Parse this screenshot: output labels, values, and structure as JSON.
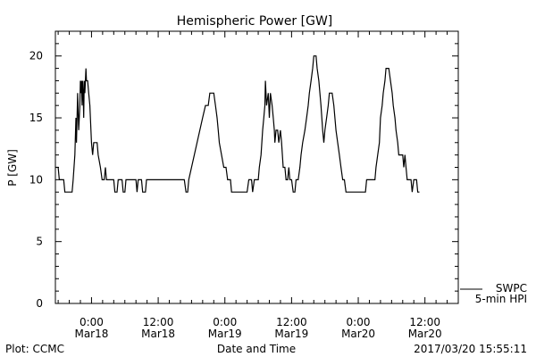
{
  "chart_data": {
    "type": "line",
    "title": "Hemispheric Power [GW]",
    "xlabel": "Date and Time",
    "ylabel": "P [GW]",
    "ylim": [
      0,
      22
    ],
    "yticks": [
      0,
      5,
      10,
      15,
      20
    ],
    "xlim": [
      -6.5,
      66
    ],
    "x_units": "hours since 2017-03-18 00:00",
    "xticks": [
      {
        "x": 0,
        "time": "0:00",
        "date": "Mar18"
      },
      {
        "x": 12,
        "time": "12:00",
        "date": "Mar18"
      },
      {
        "x": 24,
        "time": "0:00",
        "date": "Mar19"
      },
      {
        "x": 36,
        "time": "12:00",
        "date": "Mar19"
      },
      {
        "x": 48,
        "time": "0:00",
        "date": "Mar20"
      },
      {
        "x": 60,
        "time": "12:00",
        "date": "Mar20"
      }
    ],
    "grid": false,
    "legend": {
      "position": "bottom-right",
      "entries": [
        "SWPC",
        "5-min HPI"
      ]
    },
    "series": [
      {
        "name": "SWPC",
        "points": [
          [
            -6.5,
            11
          ],
          [
            -6.0,
            11
          ],
          [
            -5.8,
            10
          ],
          [
            -5.0,
            10
          ],
          [
            -4.8,
            9
          ],
          [
            -3.5,
            9
          ],
          [
            -3.3,
            10
          ],
          [
            -3.0,
            12
          ],
          [
            -2.8,
            15
          ],
          [
            -2.7,
            13
          ],
          [
            -2.5,
            17
          ],
          [
            -2.3,
            14
          ],
          [
            -2.1,
            16
          ],
          [
            -2.0,
            18
          ],
          [
            -1.9,
            17
          ],
          [
            -1.8,
            18
          ],
          [
            -1.7,
            16
          ],
          [
            -1.6,
            18
          ],
          [
            -1.5,
            17
          ],
          [
            -1.4,
            15
          ],
          [
            -1.3,
            18
          ],
          [
            -1.2,
            17
          ],
          [
            -1.0,
            19
          ],
          [
            -0.9,
            18
          ],
          [
            -0.7,
            18
          ],
          [
            -0.5,
            17
          ],
          [
            -0.3,
            16
          ],
          [
            -0.1,
            14
          ],
          [
            0.0,
            13
          ],
          [
            0.2,
            12
          ],
          [
            0.4,
            13
          ],
          [
            1.0,
            13
          ],
          [
            1.2,
            12
          ],
          [
            1.6,
            11
          ],
          [
            1.9,
            10
          ],
          [
            2.3,
            10
          ],
          [
            2.5,
            11
          ],
          [
            2.7,
            10
          ],
          [
            3.0,
            10
          ],
          [
            4.0,
            10
          ],
          [
            4.2,
            9
          ],
          [
            4.6,
            9
          ],
          [
            4.8,
            10
          ],
          [
            5.5,
            10
          ],
          [
            5.7,
            9
          ],
          [
            6.0,
            9
          ],
          [
            6.2,
            10
          ],
          [
            8.0,
            10
          ],
          [
            8.2,
            9
          ],
          [
            8.4,
            10
          ],
          [
            9.0,
            10
          ],
          [
            9.2,
            9
          ],
          [
            9.7,
            9
          ],
          [
            9.9,
            10
          ],
          [
            16.7,
            10
          ],
          [
            17.0,
            9
          ],
          [
            17.3,
            9
          ],
          [
            17.5,
            10
          ],
          [
            18.0,
            11
          ],
          [
            18.5,
            12
          ],
          [
            19.0,
            13
          ],
          [
            19.5,
            14
          ],
          [
            20.0,
            15
          ],
          [
            20.5,
            16
          ],
          [
            21.0,
            16
          ],
          [
            21.3,
            17
          ],
          [
            22.0,
            17
          ],
          [
            22.3,
            16
          ],
          [
            22.6,
            15
          ],
          [
            22.8,
            14
          ],
          [
            23.0,
            13
          ],
          [
            23.4,
            12
          ],
          [
            23.8,
            11
          ],
          [
            24.2,
            11
          ],
          [
            24.5,
            10
          ],
          [
            25.0,
            10
          ],
          [
            25.2,
            9
          ],
          [
            28.0,
            9
          ],
          [
            28.3,
            10
          ],
          [
            28.8,
            10
          ],
          [
            29.0,
            9
          ],
          [
            29.3,
            10
          ],
          [
            30.0,
            10
          ],
          [
            30.2,
            11
          ],
          [
            30.5,
            12
          ],
          [
            30.8,
            14
          ],
          [
            31.0,
            15
          ],
          [
            31.2,
            16
          ],
          [
            31.3,
            18
          ],
          [
            31.5,
            16
          ],
          [
            31.8,
            17
          ],
          [
            32.0,
            15
          ],
          [
            32.2,
            17
          ],
          [
            32.5,
            16
          ],
          [
            32.7,
            15
          ],
          [
            32.9,
            14
          ],
          [
            33.0,
            13
          ],
          [
            33.2,
            14
          ],
          [
            33.5,
            14
          ],
          [
            33.7,
            13
          ],
          [
            34.0,
            14
          ],
          [
            34.2,
            13
          ],
          [
            34.5,
            11
          ],
          [
            34.8,
            11
          ],
          [
            35.0,
            10
          ],
          [
            35.3,
            10
          ],
          [
            35.5,
            11
          ],
          [
            35.7,
            10
          ],
          [
            36.0,
            10
          ],
          [
            36.3,
            9
          ],
          [
            36.6,
            9
          ],
          [
            36.8,
            10
          ],
          [
            37.2,
            10
          ],
          [
            37.5,
            11
          ],
          [
            37.7,
            12
          ],
          [
            38.0,
            13
          ],
          [
            38.4,
            14
          ],
          [
            38.7,
            15
          ],
          [
            39.0,
            16
          ],
          [
            39.2,
            17
          ],
          [
            39.5,
            18
          ],
          [
            39.8,
            19
          ],
          [
            40.0,
            20
          ],
          [
            40.4,
            20
          ],
          [
            40.6,
            19
          ],
          [
            40.9,
            18
          ],
          [
            41.1,
            17
          ],
          [
            41.3,
            16
          ],
          [
            41.6,
            14
          ],
          [
            41.8,
            13
          ],
          [
            42.0,
            14
          ],
          [
            42.3,
            15
          ],
          [
            42.6,
            16
          ],
          [
            42.8,
            17
          ],
          [
            43.3,
            17
          ],
          [
            43.6,
            16
          ],
          [
            44.0,
            14
          ],
          [
            44.3,
            13
          ],
          [
            44.6,
            12
          ],
          [
            44.9,
            11
          ],
          [
            45.2,
            10
          ],
          [
            45.5,
            10
          ],
          [
            45.8,
            9
          ],
          [
            49.3,
            9
          ],
          [
            49.5,
            10
          ],
          [
            51.0,
            10
          ],
          [
            51.2,
            11
          ],
          [
            51.5,
            12
          ],
          [
            51.8,
            13
          ],
          [
            52.0,
            15
          ],
          [
            52.3,
            16
          ],
          [
            52.5,
            17
          ],
          [
            52.8,
            18
          ],
          [
            53.0,
            19
          ],
          [
            53.5,
            19
          ],
          [
            53.8,
            18
          ],
          [
            54.1,
            17
          ],
          [
            54.3,
            16
          ],
          [
            54.6,
            15
          ],
          [
            54.8,
            14
          ],
          [
            55.1,
            13
          ],
          [
            55.3,
            12
          ],
          [
            56.0,
            12
          ],
          [
            56.2,
            11
          ],
          [
            56.4,
            12
          ],
          [
            56.6,
            11
          ],
          [
            56.8,
            10
          ],
          [
            57.5,
            10
          ],
          [
            57.7,
            9
          ],
          [
            58.0,
            10
          ],
          [
            58.5,
            10
          ],
          [
            58.7,
            9
          ],
          [
            59.0,
            9
          ]
        ]
      },
      {
        "name": "5-min HPI",
        "points": []
      }
    ]
  },
  "footer": {
    "left": "Plot: CCMC",
    "right": "2017/03/20 15:55:11"
  }
}
